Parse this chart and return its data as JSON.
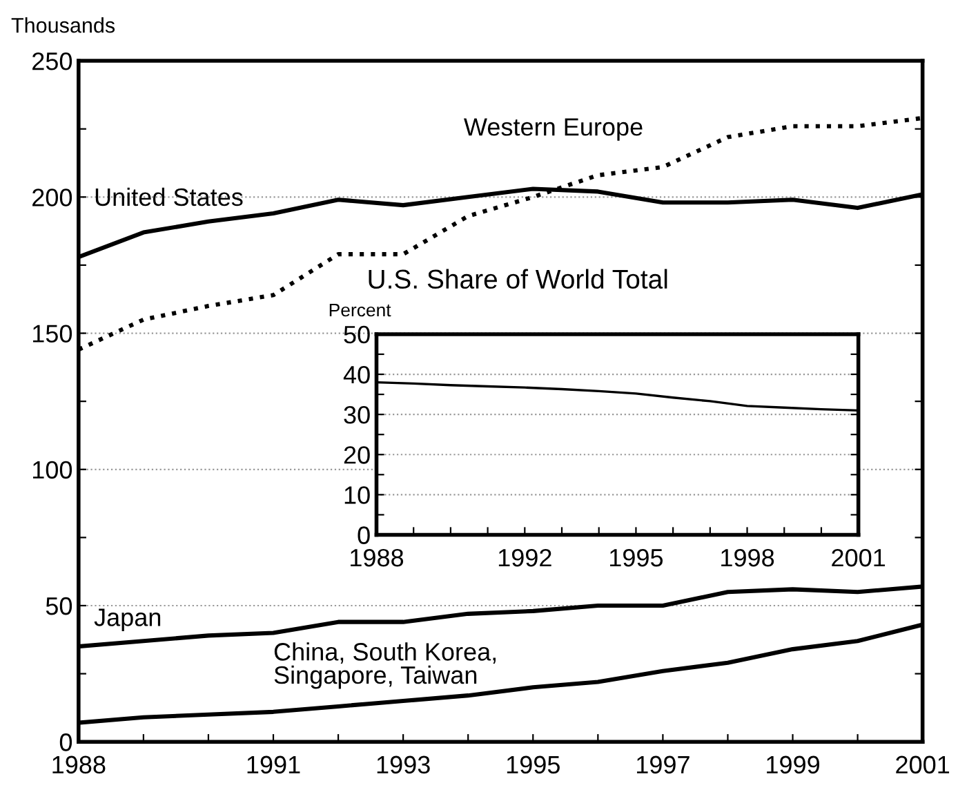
{
  "chart_data": [
    {
      "type": "line",
      "ylabel": "Thousands",
      "x": [
        1988,
        1989,
        1990,
        1991,
        1992,
        1993,
        1994,
        1995,
        1996,
        1997,
        1998,
        1999,
        2000,
        2001
      ],
      "series": [
        {
          "name": "United States",
          "color": "#000000",
          "line_style": "solid",
          "values": [
            178,
            187,
            191,
            194,
            199,
            197,
            200,
            203,
            202,
            198,
            198,
            199,
            196,
            201
          ]
        },
        {
          "name": "Western Europe",
          "color": "#000000",
          "line_style": "dotted",
          "values": [
            144,
            155,
            160,
            164,
            179,
            179,
            193,
            200,
            208,
            211,
            222,
            226,
            226,
            229
          ]
        },
        {
          "name": "Japan",
          "color": "#000000",
          "line_style": "solid",
          "values": [
            35,
            37,
            39,
            40,
            44,
            44,
            47,
            48,
            50,
            50,
            55,
            56,
            55,
            57
          ]
        },
        {
          "name": "China, South Korea,\nSingapore, Taiwan",
          "color": "#000000",
          "line_style": "solid",
          "values": [
            7,
            9,
            10,
            11,
            13,
            15,
            17,
            20,
            22,
            26,
            29,
            34,
            37,
            43
          ]
        }
      ],
      "xlim": [
        1988,
        2001
      ],
      "xticks": [
        1988,
        {
          "value": 1989,
          "label": null
        },
        {
          "value": 1990,
          "label": null
        },
        1991,
        {
          "value": 1992,
          "label": null
        },
        1993,
        {
          "value": 1994,
          "label": null
        },
        1995,
        {
          "value": 1996,
          "label": null
        },
        1997,
        {
          "value": 1998,
          "label": null
        },
        1999,
        {
          "value": 2000,
          "label": null
        },
        2001
      ],
      "ylim": [
        0,
        250
      ],
      "yticks": [
        0,
        {
          "value": 25,
          "label": null
        },
        50,
        {
          "value": 75,
          "label": null
        },
        100,
        {
          "value": 125,
          "label": null
        },
        150,
        {
          "value": 175,
          "label": null
        },
        200,
        {
          "value": 225,
          "label": null
        },
        250
      ],
      "grid": "y",
      "legend": false,
      "marker": "none"
    },
    {
      "type": "line",
      "title": "U.S. Share of World Total",
      "ylabel": "Percent",
      "x": [
        1988,
        1989,
        1990,
        1991,
        1992,
        1993,
        1994,
        1995,
        1996,
        1997,
        1998,
        1999,
        2000,
        2001
      ],
      "series": [
        {
          "color": "#000000",
          "line_style": "solid",
          "values": [
            38,
            37.7,
            37.3,
            37,
            36.7,
            36.3,
            35.8,
            35.2,
            34.2,
            33.3,
            32.1,
            31.7,
            31.3,
            31
          ]
        }
      ],
      "xlim": [
        1988,
        2001
      ],
      "xticks": [
        1988,
        {
          "value": 1989,
          "label": null
        },
        {
          "value": 1990,
          "label": null
        },
        {
          "value": 1991,
          "label": null
        },
        1992,
        {
          "value": 1993,
          "label": null
        },
        {
          "value": 1994,
          "label": null
        },
        1995,
        {
          "value": 1996,
          "label": null
        },
        {
          "value": 1997,
          "label": null
        },
        1998,
        {
          "value": 1999,
          "label": null
        },
        {
          "value": 2000,
          "label": null
        },
        2001
      ],
      "ylim": [
        0,
        50
      ],
      "yticks": [
        0,
        {
          "value": 5,
          "label": null
        },
        10,
        {
          "value": 15,
          "label": null
        },
        20,
        {
          "value": 25,
          "label": null
        },
        30,
        {
          "value": 35,
          "label": null
        },
        40,
        {
          "value": 45,
          "label": null
        },
        50
      ],
      "grid": "y",
      "legend": false,
      "marker": "none"
    }
  ]
}
